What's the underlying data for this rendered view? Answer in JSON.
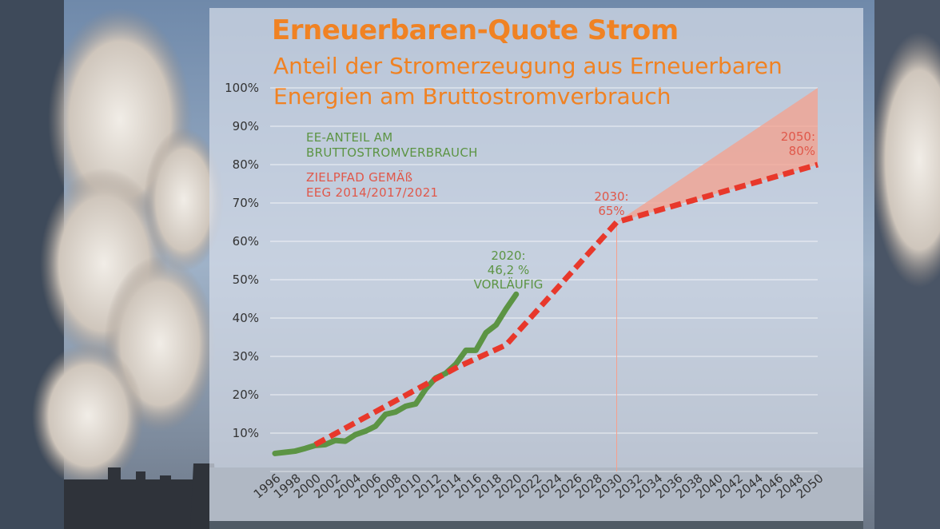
{
  "header": {
    "title": "Erneuerbaren-Quote Strom",
    "subtitle": "Anteil der Stromerzeugung aus Erneuerbaren Energien am Bruttostromverbrauch"
  },
  "legend": {
    "actual_line1": "EE-ANTEIL AM",
    "actual_line2": "BRUTTOSTROMVERBRAUCH",
    "target_line1": "ZIELPFAD GEMÄß",
    "target_line2": "EEG 2014/2017/2021"
  },
  "annotations": {
    "a2020_line1": "2020:",
    "a2020_line2": "46,2 %",
    "a2020_line3": "VORLÄUFIG",
    "a2030_line1": "2030:",
    "a2030_line2": "65%",
    "a2050_line1": "2050:",
    "a2050_line2": "80%"
  },
  "colors": {
    "title": "#f08223",
    "actual": "#5c9444",
    "target": "#e8382b",
    "target_label": "#e0584a",
    "corridor": "#f6a08c"
  },
  "chart_data": {
    "type": "line",
    "title": "Erneuerbaren-Quote Strom",
    "subtitle": "Anteil der Stromerzeugung aus Erneuerbaren Energien am Bruttostromverbrauch",
    "xlim": [
      1996,
      2050
    ],
    "ylim": [
      0,
      100
    ],
    "y_ticks": [
      "10%",
      "20%",
      "30%",
      "40%",
      "50%",
      "60%",
      "70%",
      "80%",
      "90%",
      "100%"
    ],
    "y_tick_values": [
      10,
      20,
      30,
      40,
      50,
      60,
      70,
      80,
      90,
      100
    ],
    "x_ticks": [
      1996,
      1998,
      2000,
      2002,
      2004,
      2006,
      2008,
      2010,
      2012,
      2014,
      2016,
      2018,
      2020,
      2022,
      2024,
      2026,
      2028,
      2030,
      2032,
      2034,
      2036,
      2038,
      2040,
      2042,
      2044,
      2046,
      2048,
      2050
    ],
    "grid": "horizontal",
    "series": [
      {
        "name": "EE-ANTEIL AM BRUTTOSTROMVERBRAUCH",
        "style": "solid",
        "x": [
          1996,
          1997,
          1998,
          1999,
          2000,
          2001,
          2002,
          2003,
          2004,
          2005,
          2006,
          2007,
          2008,
          2009,
          2010,
          2011,
          2012,
          2013,
          2014,
          2015,
          2016,
          2017,
          2018,
          2019,
          2020
        ],
        "y": [
          4.7,
          5.0,
          5.3,
          6.0,
          6.8,
          7.0,
          8.1,
          7.9,
          9.6,
          10.5,
          11.8,
          14.9,
          15.5,
          17.0,
          17.6,
          21.5,
          24.4,
          25.6,
          28.0,
          31.6,
          31.6,
          36.2,
          38.2,
          42.4,
          46.2
        ]
      },
      {
        "name": "ZIELPFAD GEMÄß EEG 2014/2017/2021",
        "style": "dashed",
        "x": [
          2000,
          2014,
          2019,
          2030,
          2050
        ],
        "y": [
          7.0,
          27.0,
          33.0,
          65.0,
          80.0
        ]
      }
    ],
    "corridor": {
      "x": [
        2030,
        2050
      ],
      "lower": [
        65,
        80
      ],
      "upper": [
        65,
        100
      ]
    }
  }
}
